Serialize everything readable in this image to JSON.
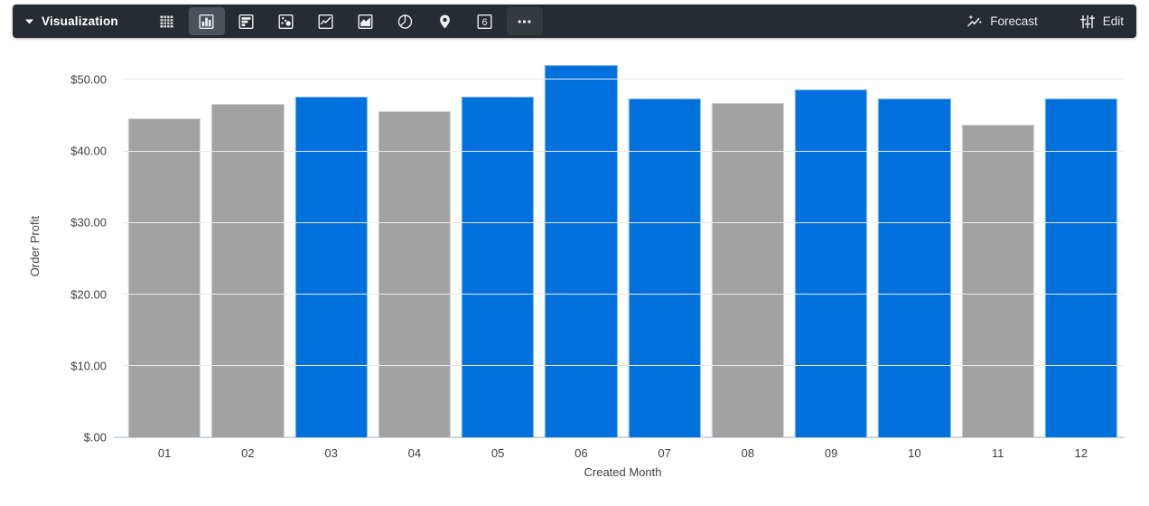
{
  "toolbar": {
    "label": "Visualization",
    "viz_types": [
      {
        "name": "table",
        "selected": false
      },
      {
        "name": "column",
        "selected": true
      },
      {
        "name": "bar",
        "selected": false
      },
      {
        "name": "scatterplot",
        "selected": false
      },
      {
        "name": "line",
        "selected": false
      },
      {
        "name": "area",
        "selected": false
      },
      {
        "name": "pie",
        "selected": false
      },
      {
        "name": "map",
        "selected": false
      },
      {
        "name": "single-value",
        "selected": false,
        "glyph": "6"
      },
      {
        "name": "more",
        "selected": false
      }
    ],
    "forecast_label": "Forecast",
    "edit_label": "Edit"
  },
  "chart_data": {
    "type": "bar",
    "title": "",
    "xlabel": "Created Month",
    "ylabel": "Order Profit",
    "categories": [
      "01",
      "02",
      "03",
      "04",
      "05",
      "06",
      "07",
      "08",
      "09",
      "10",
      "11",
      "12"
    ],
    "values": [
      44.6,
      46.5,
      47.6,
      45.6,
      47.6,
      52.0,
      47.3,
      46.7,
      48.6,
      47.3,
      43.7,
      47.3
    ],
    "bar_colors": [
      "gray",
      "gray",
      "blue",
      "gray",
      "blue",
      "blue",
      "blue",
      "gray",
      "blue",
      "blue",
      "gray",
      "blue"
    ],
    "palette": {
      "blue": "#0070dd",
      "gray": "#a2a2a2"
    },
    "y_ticks": [
      {
        "label": "$50.00",
        "value": 50
      },
      {
        "label": "$40.00",
        "value": 40
      },
      {
        "label": "$30.00",
        "value": 30
      },
      {
        "label": "$20.00",
        "value": 20
      },
      {
        "label": "$10.00",
        "value": 10
      },
      {
        "label": "$.00",
        "value": 0
      }
    ],
    "ylim": [
      0,
      53.5
    ],
    "grid": true,
    "legend": "none"
  }
}
